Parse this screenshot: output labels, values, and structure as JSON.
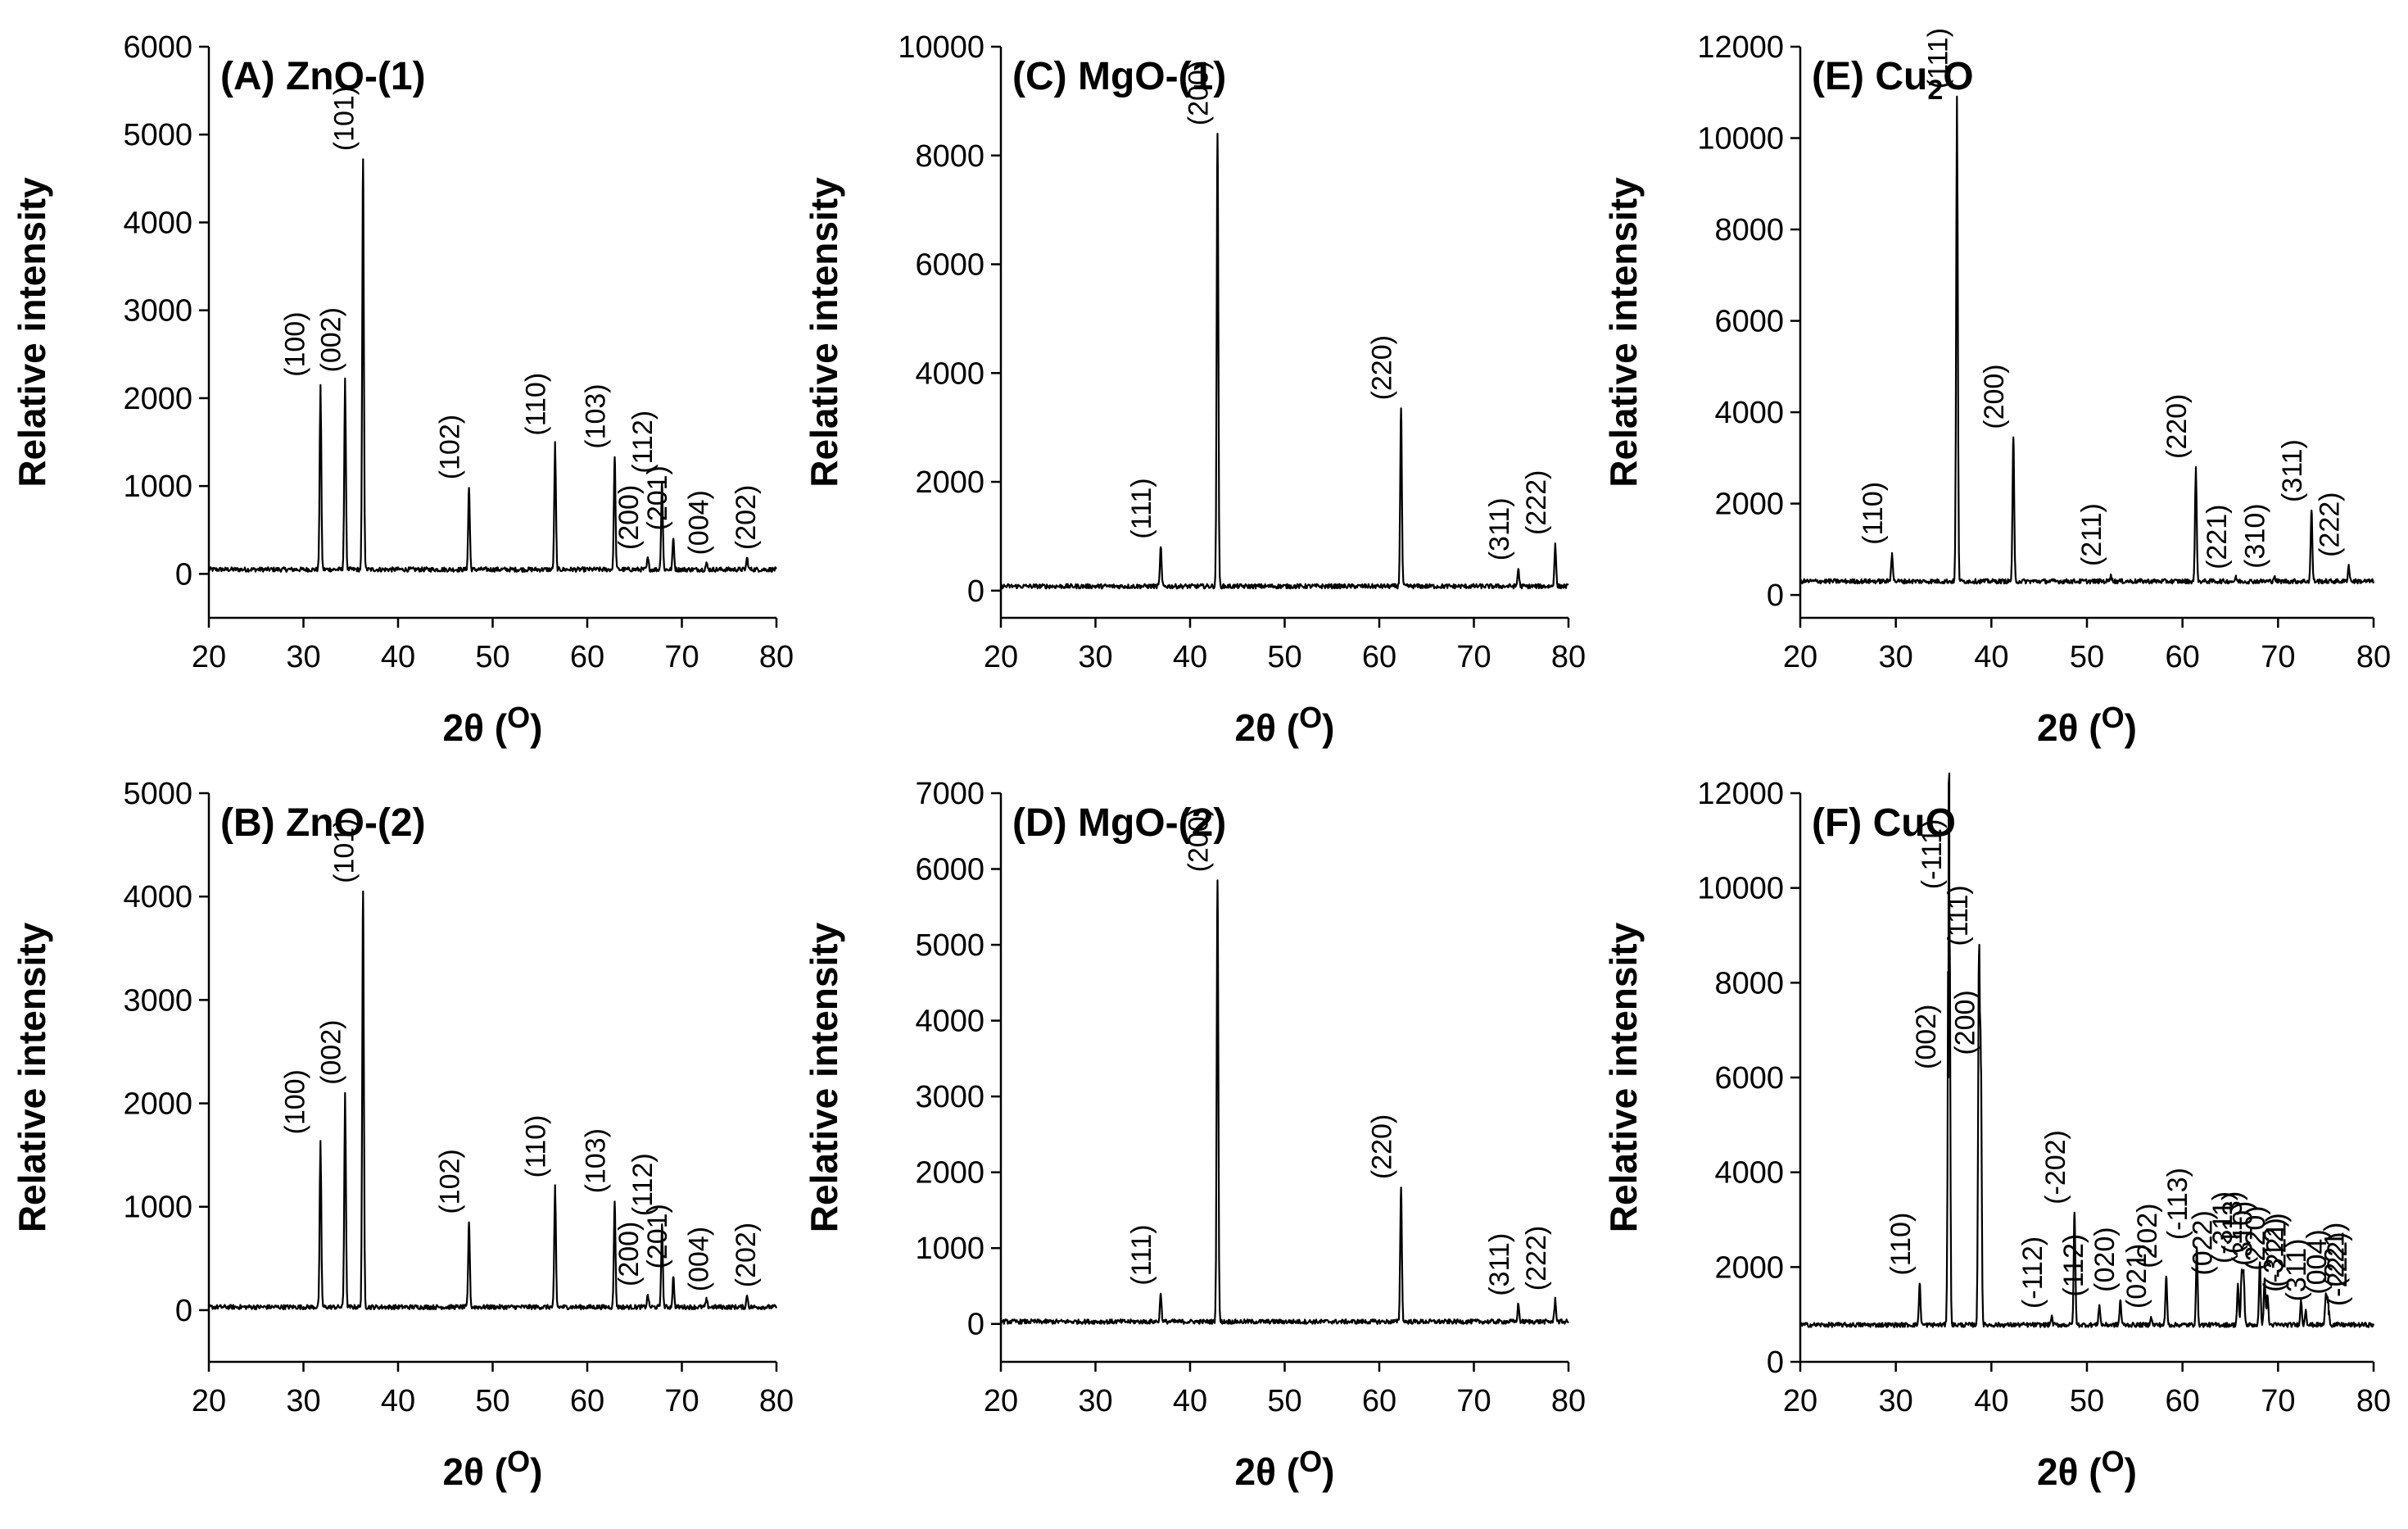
{
  "chart_data": [
    {
      "type": "line",
      "title": "(A) ZnO-(1)",
      "title_parts": {
        "main": "(A) ZnO-(1)",
        "sub": "",
        "tail": ""
      },
      "xlabel": "2θ (",
      "xlabel_unit": "O",
      "xlabel_end": ")",
      "ylabel": "Relative intensity",
      "xlim": [
        20,
        80
      ],
      "ylim": [
        -500,
        6000
      ],
      "xticks": [
        20,
        30,
        40,
        50,
        60,
        70,
        80
      ],
      "yticks": [
        0,
        1000,
        2000,
        3000,
        4000,
        5000,
        6000
      ],
      "grid": false,
      "baseline": 50,
      "peaks": [
        {
          "x": 31.8,
          "y": 2150,
          "label": "(100)"
        },
        {
          "x": 34.4,
          "y": 2200,
          "label": "(002)"
        },
        {
          "x": 36.3,
          "y": 4720,
          "label": "(101)"
        },
        {
          "x": 47.5,
          "y": 980,
          "label": "(102)"
        },
        {
          "x": 56.6,
          "y": 1480,
          "label": "(110)"
        },
        {
          "x": 62.9,
          "y": 1330,
          "label": "(103)"
        },
        {
          "x": 66.4,
          "y": 180,
          "label": "(200)"
        },
        {
          "x": 67.9,
          "y": 1050,
          "label": "(112)"
        },
        {
          "x": 69.1,
          "y": 400,
          "label": "(201)"
        },
        {
          "x": 72.6,
          "y": 120,
          "label": "(004)"
        },
        {
          "x": 76.9,
          "y": 180,
          "label": "(202)"
        }
      ]
    },
    {
      "type": "line",
      "title": "(B) ZnO-(2)",
      "title_parts": {
        "main": "(B) ZnO-(2)",
        "sub": "",
        "tail": ""
      },
      "xlabel": "2θ (",
      "xlabel_unit": "O",
      "xlabel_end": ")",
      "ylabel": "Relative intensity",
      "xlim": [
        20,
        80
      ],
      "ylim": [
        -500,
        5000
      ],
      "xticks": [
        20,
        30,
        40,
        50,
        60,
        70,
        80
      ],
      "yticks": [
        0,
        1000,
        2000,
        3000,
        4000,
        5000
      ],
      "grid": false,
      "baseline": 30,
      "peaks": [
        {
          "x": 31.8,
          "y": 1620,
          "label": "(100)"
        },
        {
          "x": 34.4,
          "y": 2100,
          "label": "(002)"
        },
        {
          "x": 36.3,
          "y": 4050,
          "label": "(101)"
        },
        {
          "x": 47.5,
          "y": 850,
          "label": "(102)"
        },
        {
          "x": 56.6,
          "y": 1200,
          "label": "(110)"
        },
        {
          "x": 62.9,
          "y": 1050,
          "label": "(103)"
        },
        {
          "x": 66.4,
          "y": 150,
          "label": "(200)"
        },
        {
          "x": 67.9,
          "y": 830,
          "label": "(112)"
        },
        {
          "x": 69.1,
          "y": 320,
          "label": "(201)"
        },
        {
          "x": 72.6,
          "y": 100,
          "label": "(004)"
        },
        {
          "x": 76.9,
          "y": 140,
          "label": "(202)"
        }
      ]
    },
    {
      "type": "line",
      "title": "(C) MgO-(1)",
      "title_parts": {
        "main": "(C) MgO-(1)",
        "sub": "",
        "tail": ""
      },
      "xlabel": "2θ (",
      "xlabel_unit": "O",
      "xlabel_end": ")",
      "ylabel": "Relative intensity",
      "xlim": [
        20,
        80
      ],
      "ylim": [
        -500,
        10000
      ],
      "xticks": [
        20,
        30,
        40,
        50,
        60,
        70,
        80
      ],
      "yticks": [
        0,
        2000,
        4000,
        6000,
        8000,
        10000
      ],
      "grid": false,
      "baseline": 80,
      "peaks": [
        {
          "x": 36.9,
          "y": 800,
          "label": "(111)"
        },
        {
          "x": 42.9,
          "y": 8400,
          "label": "(200)"
        },
        {
          "x": 62.3,
          "y": 3350,
          "label": "(220)"
        },
        {
          "x": 74.7,
          "y": 400,
          "label": "(311)"
        },
        {
          "x": 78.6,
          "y": 870,
          "label": "(222)"
        }
      ]
    },
    {
      "type": "line",
      "title": "(D) MgO-(2)",
      "title_parts": {
        "main": "(D) MgO-(2)",
        "sub": "",
        "tail": ""
      },
      "xlabel": "2θ (",
      "xlabel_unit": "O",
      "xlabel_end": ")",
      "ylabel": "Relative intensity",
      "xlim": [
        20,
        80
      ],
      "ylim": [
        -500,
        7000
      ],
      "xticks": [
        20,
        30,
        40,
        50,
        60,
        70,
        80
      ],
      "yticks": [
        0,
        1000,
        2000,
        3000,
        4000,
        5000,
        6000,
        7000
      ],
      "grid": false,
      "baseline": 30,
      "peaks": [
        {
          "x": 36.9,
          "y": 400,
          "label": "(111)"
        },
        {
          "x": 42.9,
          "y": 5850,
          "label": "(200)"
        },
        {
          "x": 62.3,
          "y": 1800,
          "label": "(220)"
        },
        {
          "x": 74.7,
          "y": 260,
          "label": "(311)"
        },
        {
          "x": 78.6,
          "y": 330,
          "label": "(222)"
        }
      ]
    },
    {
      "type": "line",
      "title": "(E) Cu",
      "title_parts": {
        "main": "(E) Cu",
        "sub": "2",
        "tail": "O"
      },
      "xlabel": "2θ (",
      "xlabel_unit": "O",
      "xlabel_end": ")",
      "ylabel": "Relative intensity",
      "xlim": [
        20,
        80
      ],
      "ylim": [
        -500,
        12000
      ],
      "xticks": [
        20,
        30,
        40,
        50,
        60,
        70,
        80
      ],
      "yticks": [
        0,
        2000,
        4000,
        6000,
        8000,
        10000,
        12000
      ],
      "grid": false,
      "baseline": 300,
      "peaks": [
        {
          "x": 29.6,
          "y": 920,
          "label": "(110)"
        },
        {
          "x": 36.4,
          "y": 10900,
          "label": "(111)"
        },
        {
          "x": 42.3,
          "y": 3450,
          "label": "(200)"
        },
        {
          "x": 52.5,
          "y": 450,
          "label": "(211)"
        },
        {
          "x": 61.4,
          "y": 2800,
          "label": "(220)"
        },
        {
          "x": 65.6,
          "y": 380,
          "label": "(221)"
        },
        {
          "x": 69.6,
          "y": 400,
          "label": "(310)"
        },
        {
          "x": 73.5,
          "y": 1850,
          "label": "(311)"
        },
        {
          "x": 77.4,
          "y": 650,
          "label": "(222)"
        }
      ]
    },
    {
      "type": "line",
      "title": "(F) CuO",
      "title_parts": {
        "main": "(F) CuO",
        "sub": "",
        "tail": ""
      },
      "xlabel": "2θ (",
      "xlabel_unit": "O",
      "xlabel_end": ")",
      "ylabel": "Relative intensity",
      "xlim": [
        20,
        80
      ],
      "ylim": [
        0,
        12000
      ],
      "xticks": [
        20,
        30,
        40,
        50,
        60,
        70,
        80
      ],
      "yticks": [
        0,
        2000,
        4000,
        6000,
        8000,
        10000,
        12000
      ],
      "grid": false,
      "baseline": 780,
      "peaks": [
        {
          "x": 32.5,
          "y": 1650,
          "label": "(110)"
        },
        {
          "x": 35.5,
          "y": 6000,
          "label": "(002)"
        },
        {
          "x": 35.6,
          "y": 9800,
          "label": "(-111)"
        },
        {
          "x": 38.7,
          "y": 8600,
          "label": "(111)"
        },
        {
          "x": 38.9,
          "y": 6300,
          "label": "(200)"
        },
        {
          "x": 46.3,
          "y": 950,
          "label": "(-112)"
        },
        {
          "x": 48.7,
          "y": 3150,
          "label": "(-202)"
        },
        {
          "x": 51.3,
          "y": 1200,
          "label": "(112)"
        },
        {
          "x": 53.5,
          "y": 1300,
          "label": "(020)"
        },
        {
          "x": 56.7,
          "y": 950,
          "label": "(021)"
        },
        {
          "x": 58.3,
          "y": 1800,
          "label": "(202)"
        },
        {
          "x": 61.5,
          "y": 2400,
          "label": "(-113)"
        },
        {
          "x": 65.8,
          "y": 1650,
          "label": "(022)"
        },
        {
          "x": 66.2,
          "y": 1900,
          "label": "(-311)"
        },
        {
          "x": 66.4,
          "y": 1850,
          "label": "(310)"
        },
        {
          "x": 68.1,
          "y": 2100,
          "label": "(113)"
        },
        {
          "x": 68.6,
          "y": 1750,
          "label": "(220)"
        },
        {
          "x": 68.9,
          "y": 1400,
          "label": "(-221)"
        },
        {
          "x": 72.4,
          "y": 1300,
          "label": "(-312)"
        },
        {
          "x": 72.9,
          "y": 1100,
          "label": "(311)"
        },
        {
          "x": 75.0,
          "y": 1400,
          "label": "(221)"
        },
        {
          "x": 75.2,
          "y": 1250,
          "label": "(004)"
        },
        {
          "x": 75.3,
          "y": 1000,
          "label": "(-222)"
        }
      ]
    }
  ]
}
